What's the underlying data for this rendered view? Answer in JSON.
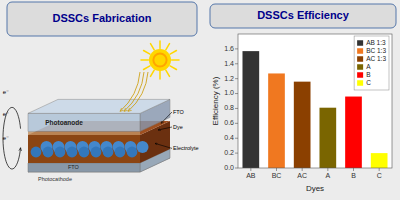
{
  "chart_data": {
    "type": "bar",
    "title": "DSSCs Efficiency",
    "x_label": "Dyes",
    "y_label": "Efficiency (%)",
    "categories": [
      "AB",
      "BC",
      "AC",
      "A",
      "B",
      "C"
    ],
    "series": [
      {
        "name": "AB 1:3",
        "color": "#333333",
        "values": [
          1.57,
          null,
          null,
          null,
          null,
          null
        ]
      },
      {
        "name": "BC 1:3",
        "color": "#f07820",
        "values": [
          null,
          1.27,
          null,
          null,
          null,
          null
        ]
      },
      {
        "name": "AC 1:3",
        "color": "#8b4000",
        "values": [
          null,
          null,
          1.16,
          null,
          null,
          null
        ]
      },
      {
        "name": "A",
        "color": "#7a6500",
        "values": [
          null,
          null,
          null,
          0.81,
          null,
          null
        ]
      },
      {
        "name": "B",
        "color": "#ff0000",
        "values": [
          null,
          null,
          null,
          null,
          0.96,
          null
        ]
      },
      {
        "name": "C",
        "color": "#ffff00",
        "values": [
          null,
          null,
          null,
          null,
          null,
          0.2
        ]
      }
    ],
    "stacked": true,
    "ylim": [
      0,
      1.8
    ],
    "yticks": [
      {
        "value": 0.0,
        "label": "0.0"
      },
      0.2,
      0.4,
      0.6,
      0.8,
      {
        "value": 1.0,
        "label": "1.0"
      },
      1.2,
      1.4,
      1.6
    ],
    "grid": false,
    "legend": "upper right",
    "annotations": [
      "DSSCs Fabrication",
      "FTO",
      "Photocathode",
      "Photoanode",
      "FTO",
      "Dye",
      "Electrolyte",
      "e⁻",
      "e⁻",
      "e⁻"
    ]
  }
}
